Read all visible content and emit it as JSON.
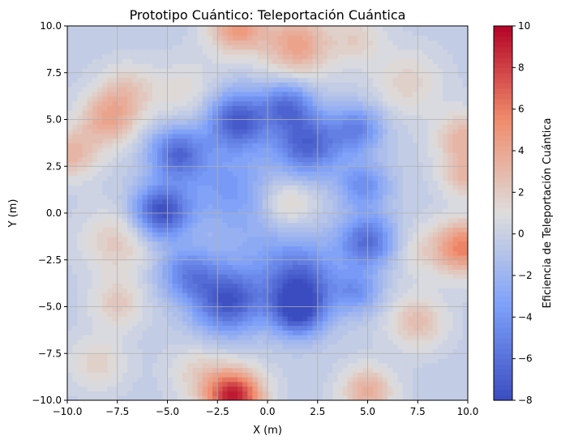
{
  "chart_data": {
    "type": "heatmap",
    "title": "Prototipo Cuántico: Teleportación Cuántica",
    "xlabel": "X (m)",
    "ylabel": "Y (m)",
    "colorbar_label": "Eficiencia de Teleportación Cuántica",
    "xlim": [
      -10,
      10
    ],
    "ylim": [
      -10,
      10
    ],
    "clim": [
      -8,
      10
    ],
    "x_ticks": [
      -10,
      -7.5,
      -5,
      -2.5,
      0,
      2.5,
      5,
      7.5,
      10
    ],
    "x_tick_labels": [
      "−10.0",
      "−7.5",
      "−5.0",
      "−2.5",
      "0.0",
      "2.5",
      "5.0",
      "7.5",
      "10.0"
    ],
    "y_ticks": [
      -10,
      -7.5,
      -5,
      -2.5,
      0,
      2.5,
      5,
      7.5,
      10
    ],
    "y_tick_labels": [
      "−10.0",
      "−7.5",
      "−5.0",
      "−2.5",
      "0.0",
      "2.5",
      "5.0",
      "7.5",
      "10.0"
    ],
    "colorbar_ticks": [
      -8,
      -6,
      -4,
      -2,
      0,
      2,
      4,
      6,
      8,
      10
    ],
    "colorbar_tick_labels": [
      "−8",
      "−6",
      "−4",
      "−2",
      "0",
      "2",
      "4",
      "6",
      "8",
      "10"
    ],
    "colormap": "coolwarm",
    "grid": true,
    "features": [
      {
        "x": -1.7,
        "y": -9.8,
        "value": 9.5,
        "spread": 1.0
      },
      {
        "x": -1.5,
        "y": 10.0,
        "value": 5.0,
        "spread": 1.0
      },
      {
        "x": 1.5,
        "y": 9.0,
        "value": 4.5,
        "spread": 1.2
      },
      {
        "x": 5.0,
        "y": -9.5,
        "value": 4.0,
        "spread": 0.9
      },
      {
        "x": -8.0,
        "y": 5.0,
        "value": 4.0,
        "spread": 1.0
      },
      {
        "x": -9.8,
        "y": 3.2,
        "value": 3.5,
        "spread": 0.9
      },
      {
        "x": 9.8,
        "y": -1.8,
        "value": 6.0,
        "spread": 1.0
      },
      {
        "x": 9.8,
        "y": 4.0,
        "value": 3.5,
        "spread": 1.0
      },
      {
        "x": 9.8,
        "y": 2.0,
        "value": 3.0,
        "spread": 0.8
      },
      {
        "x": 1.0,
        "y": 0.5,
        "value": 3.0,
        "spread": 1.0
      },
      {
        "x": -7.5,
        "y": -1.5,
        "value": 2.5,
        "spread": 1.2
      },
      {
        "x": -7.0,
        "y": 6.5,
        "value": 2.5,
        "spread": 1.0
      },
      {
        "x": 7.5,
        "y": -5.8,
        "value": 3.0,
        "spread": 1.0
      },
      {
        "x": -7.5,
        "y": -4.8,
        "value": 2.5,
        "spread": 0.9
      },
      {
        "x": 7.0,
        "y": 7.0,
        "value": 2.0,
        "spread": 1.2
      },
      {
        "x": 4.5,
        "y": 9.3,
        "value": 2.0,
        "spread": 0.9
      },
      {
        "x": -4.0,
        "y": 6.5,
        "value": 1.5,
        "spread": 1.2
      },
      {
        "x": -3.5,
        "y": -8.5,
        "value": 1.8,
        "spread": 1.0
      },
      {
        "x": -8.5,
        "y": -8.0,
        "value": 2.0,
        "spread": 1.0
      },
      {
        "x": 7.5,
        "y": -2.0,
        "value": 1.5,
        "spread": 1.0
      },
      {
        "x": -1.5,
        "y": 5.0,
        "value": -7.0,
        "spread": 1.1
      },
      {
        "x": -5.3,
        "y": 0.1,
        "value": -7.5,
        "spread": 1.0
      },
      {
        "x": -4.5,
        "y": 3.2,
        "value": -6.0,
        "spread": 1.0
      },
      {
        "x": -2.0,
        "y": -4.7,
        "value": -7.0,
        "spread": 1.2
      },
      {
        "x": 1.7,
        "y": -3.8,
        "value": -6.0,
        "spread": 1.3
      },
      {
        "x": 1.5,
        "y": -5.3,
        "value": -6.0,
        "spread": 0.9
      },
      {
        "x": 2.0,
        "y": 3.7,
        "value": -6.5,
        "spread": 1.2
      },
      {
        "x": 1.0,
        "y": 5.8,
        "value": -5.0,
        "spread": 0.9
      },
      {
        "x": 5.0,
        "y": -1.5,
        "value": -6.0,
        "spread": 1.0
      },
      {
        "x": 4.5,
        "y": 4.5,
        "value": -4.5,
        "spread": 0.9
      },
      {
        "x": 4.8,
        "y": 1.5,
        "value": -4.0,
        "spread": 0.9
      },
      {
        "x": -4.0,
        "y": -3.2,
        "value": -4.5,
        "spread": 1.0
      },
      {
        "x": 4.5,
        "y": -4.2,
        "value": -3.5,
        "spread": 0.8
      },
      {
        "x": -2.0,
        "y": 1.5,
        "value": -3.0,
        "spread": 1.5
      },
      {
        "x": 0.0,
        "y": -1.5,
        "value": -2.0,
        "spread": 2.0
      }
    ]
  }
}
